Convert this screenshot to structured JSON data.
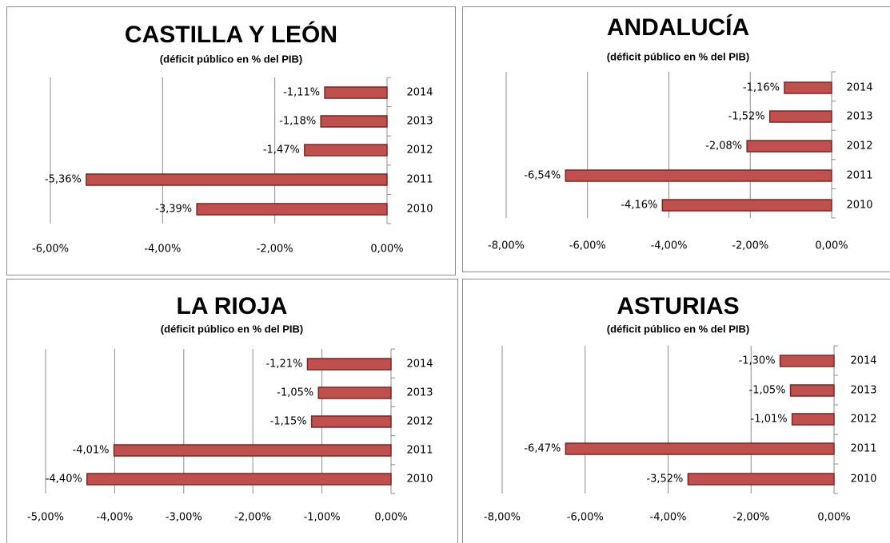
{
  "chart_data": [
    {
      "type": "bar",
      "title": "CASTILLA Y LEÓN",
      "subtitle": "(déficit público  en % del PIB)",
      "categories": [
        "2014",
        "2013",
        "2012",
        "2011",
        "2010"
      ],
      "values": [
        -1.11,
        -1.18,
        -1.47,
        -5.36,
        -3.39
      ],
      "value_labels": [
        "-1,11%",
        "-1,18%",
        "-1,47%",
        "-5,36%",
        "-3,39%"
      ],
      "color": "#c0504d",
      "grid": true,
      "xlim": [
        -6,
        0
      ],
      "xticks": [
        {
          "value": -6,
          "label": "-6,00%"
        },
        {
          "value": -4,
          "label": "-4,00%"
        },
        {
          "value": -2,
          "label": "-2,00%"
        },
        {
          "value": 0,
          "label": "0,00%"
        }
      ]
    },
    {
      "type": "bar",
      "title": "ANDALUCÍA",
      "subtitle": "(déficit público  en % del PIB)",
      "categories": [
        "2014",
        "2013",
        "2012",
        "2011",
        "2010"
      ],
      "values": [
        -1.16,
        -1.52,
        -2.08,
        -6.54,
        -4.16
      ],
      "value_labels": [
        "-1,16%",
        "-1,52%",
        "-2,08%",
        "-6,54%",
        "-4,16%"
      ],
      "color": "#c0504d",
      "grid": true,
      "xlim": [
        -8,
        0
      ],
      "xticks": [
        {
          "value": -8,
          "label": "-8,00%"
        },
        {
          "value": -6,
          "label": "-6,00%"
        },
        {
          "value": -4,
          "label": "-4,00%"
        },
        {
          "value": -2,
          "label": "-2,00%"
        },
        {
          "value": 0,
          "label": "0,00%"
        }
      ]
    },
    {
      "type": "bar",
      "title": "LA RIOJA",
      "subtitle": "(déficit público  en % del PIB)",
      "categories": [
        "2014",
        "2013",
        "2012",
        "2011",
        "2010"
      ],
      "values": [
        -1.21,
        -1.05,
        -1.15,
        -4.01,
        -4.4
      ],
      "value_labels": [
        "-1,21%",
        "-1,05%",
        "-1,15%",
        "-4,01%",
        "-4,40%"
      ],
      "color": "#c0504d",
      "grid": true,
      "xlim": [
        -5,
        0
      ],
      "xticks": [
        {
          "value": -5,
          "label": "-5,00%"
        },
        {
          "value": -4,
          "label": "-4,00%"
        },
        {
          "value": -3,
          "label": "-3,00%"
        },
        {
          "value": -2,
          "label": "-2,00%"
        },
        {
          "value": -1,
          "label": "-1,00%"
        },
        {
          "value": 0,
          "label": "0,00%"
        }
      ]
    },
    {
      "type": "bar",
      "title": "ASTURIAS",
      "subtitle": "(déficit público  en % del PIB)",
      "categories": [
        "2014",
        "2013",
        "2012",
        "2011",
        "2010"
      ],
      "values": [
        -1.3,
        -1.05,
        -1.01,
        -6.47,
        -3.52
      ],
      "value_labels": [
        "-1,30%",
        "-1,05%",
        "-1,01%",
        "-6,47%",
        "-3,52%"
      ],
      "color": "#c0504d",
      "grid": true,
      "xlim": [
        -8,
        0
      ],
      "xticks": [
        {
          "value": -8,
          "label": "-8,00%"
        },
        {
          "value": -6,
          "label": "-6,00%"
        },
        {
          "value": -4,
          "label": "-4,00%"
        },
        {
          "value": -2,
          "label": "-2,00%"
        },
        {
          "value": 0,
          "label": "0,00%"
        }
      ]
    }
  ]
}
